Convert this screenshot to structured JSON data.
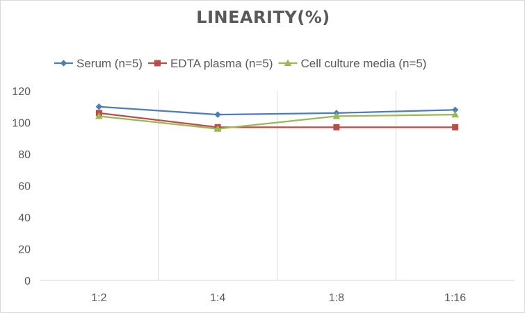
{
  "chart_data": {
    "type": "line",
    "title": "LINEARITY(%)",
    "xlabel": "",
    "ylabel": "",
    "categories": [
      "1:2",
      "1:4",
      "1:8",
      "1:16"
    ],
    "ylim": [
      0,
      120
    ],
    "yticks": [
      0,
      20,
      40,
      60,
      80,
      100,
      120
    ],
    "grid": "vertical",
    "legend_position": "top",
    "series": [
      {
        "name": "Serum (n=5)",
        "values": [
          110,
          105,
          106,
          108
        ],
        "color": "#4a7ebb",
        "marker": "diamond"
      },
      {
        "name": "EDTA plasma (n=5)",
        "values": [
          106,
          97,
          97,
          97
        ],
        "color": "#be4b48",
        "marker": "square"
      },
      {
        "name": "Cell culture media (n=5)",
        "values": [
          104,
          96,
          104,
          105
        ],
        "color": "#98b954",
        "marker": "triangle"
      }
    ]
  }
}
